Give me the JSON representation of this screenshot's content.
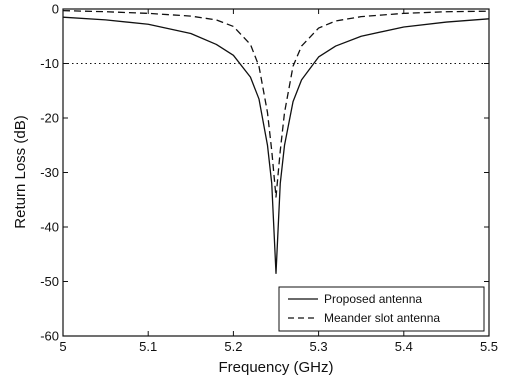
{
  "chart_data": {
    "type": "line",
    "title": "",
    "xlabel": "Frequency (GHz)",
    "ylabel": "Return Loss (dB)",
    "xlim": [
      5,
      5.5
    ],
    "ylim": [
      -60,
      0
    ],
    "xticks": [
      "5",
      "5.1",
      "5.2",
      "5.3",
      "5.4",
      "5.5"
    ],
    "yticks": [
      "0",
      "-10",
      "-20",
      "-30",
      "-40",
      "-50",
      "-60"
    ],
    "grid": false,
    "reference_line": {
      "y": -10,
      "style": "dotted"
    },
    "legend": {
      "position": "bottom-right"
    },
    "series": [
      {
        "name": "Proposed antenna",
        "style": "solid",
        "x": [
          5.0,
          5.05,
          5.1,
          5.15,
          5.18,
          5.2,
          5.22,
          5.23,
          5.24,
          5.245,
          5.25,
          5.255,
          5.26,
          5.27,
          5.28,
          5.3,
          5.32,
          5.35,
          5.4,
          5.45,
          5.5
        ],
        "y": [
          -1.5,
          -2.0,
          -2.8,
          -4.5,
          -6.5,
          -8.5,
          -12.5,
          -16.5,
          -25,
          -32,
          -48.5,
          -32,
          -25,
          -17,
          -13,
          -8.8,
          -6.8,
          -5.0,
          -3.3,
          -2.4,
          -1.8
        ]
      },
      {
        "name": "Meander slot antenna",
        "style": "dashed",
        "x": [
          5.0,
          5.05,
          5.1,
          5.15,
          5.18,
          5.2,
          5.22,
          5.23,
          5.24,
          5.245,
          5.25,
          5.255,
          5.26,
          5.27,
          5.28,
          5.3,
          5.32,
          5.35,
          5.4,
          5.45,
          5.5
        ],
        "y": [
          -0.3,
          -0.5,
          -0.8,
          -1.3,
          -2.0,
          -3.2,
          -6.5,
          -10.5,
          -19,
          -26,
          -34.5,
          -26,
          -19,
          -10.5,
          -6.8,
          -3.5,
          -2.2,
          -1.4,
          -0.8,
          -0.5,
          -0.4
        ]
      }
    ]
  }
}
